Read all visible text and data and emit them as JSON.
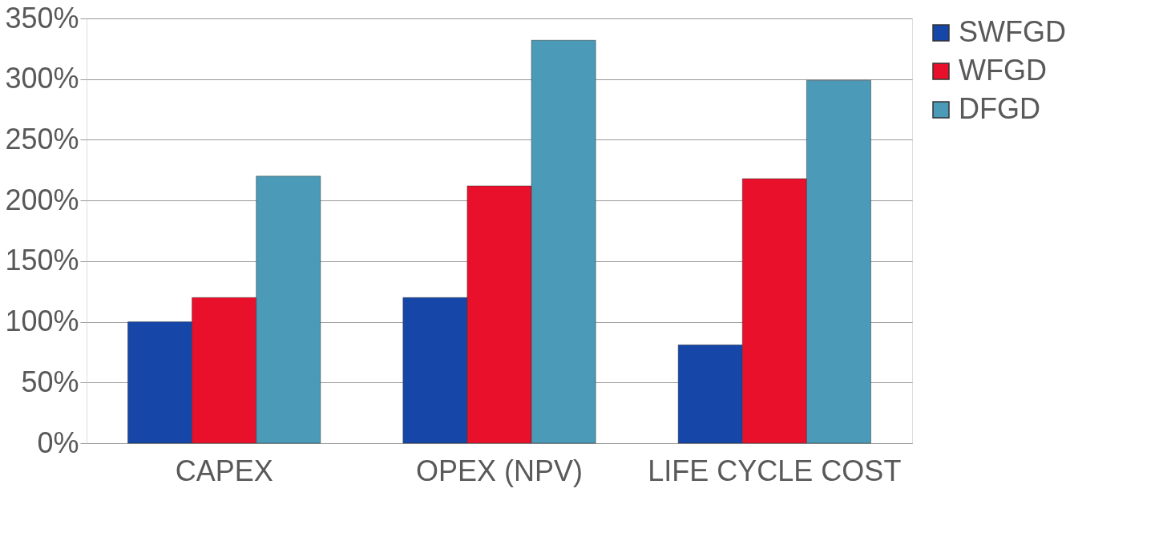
{
  "chart_data": {
    "type": "bar",
    "categories": [
      "CAPEX",
      "OPEX (NPV)",
      "LIFE CYCLE COST"
    ],
    "series": [
      {
        "name": "SWFGD",
        "color": "#1546a8",
        "values": [
          100,
          120,
          81
        ]
      },
      {
        "name": "WFGD",
        "color": "#e8102a",
        "values": [
          120,
          212,
          218
        ]
      },
      {
        "name": "DFGD",
        "color": "#4a9ab8",
        "values": [
          220,
          332,
          299
        ]
      }
    ],
    "ylim": [
      0,
      350
    ],
    "yticks": [
      {
        "value": 0,
        "label": "0%"
      },
      {
        "value": 50,
        "label": "50%"
      },
      {
        "value": 100,
        "label": "100%"
      },
      {
        "value": 150,
        "label": "150%"
      },
      {
        "value": 200,
        "label": "200%"
      },
      {
        "value": 250,
        "label": "250%"
      },
      {
        "value": 300,
        "label": "300%"
      },
      {
        "value": 350,
        "label": "350%"
      }
    ],
    "grid": "y",
    "legend": "right"
  }
}
